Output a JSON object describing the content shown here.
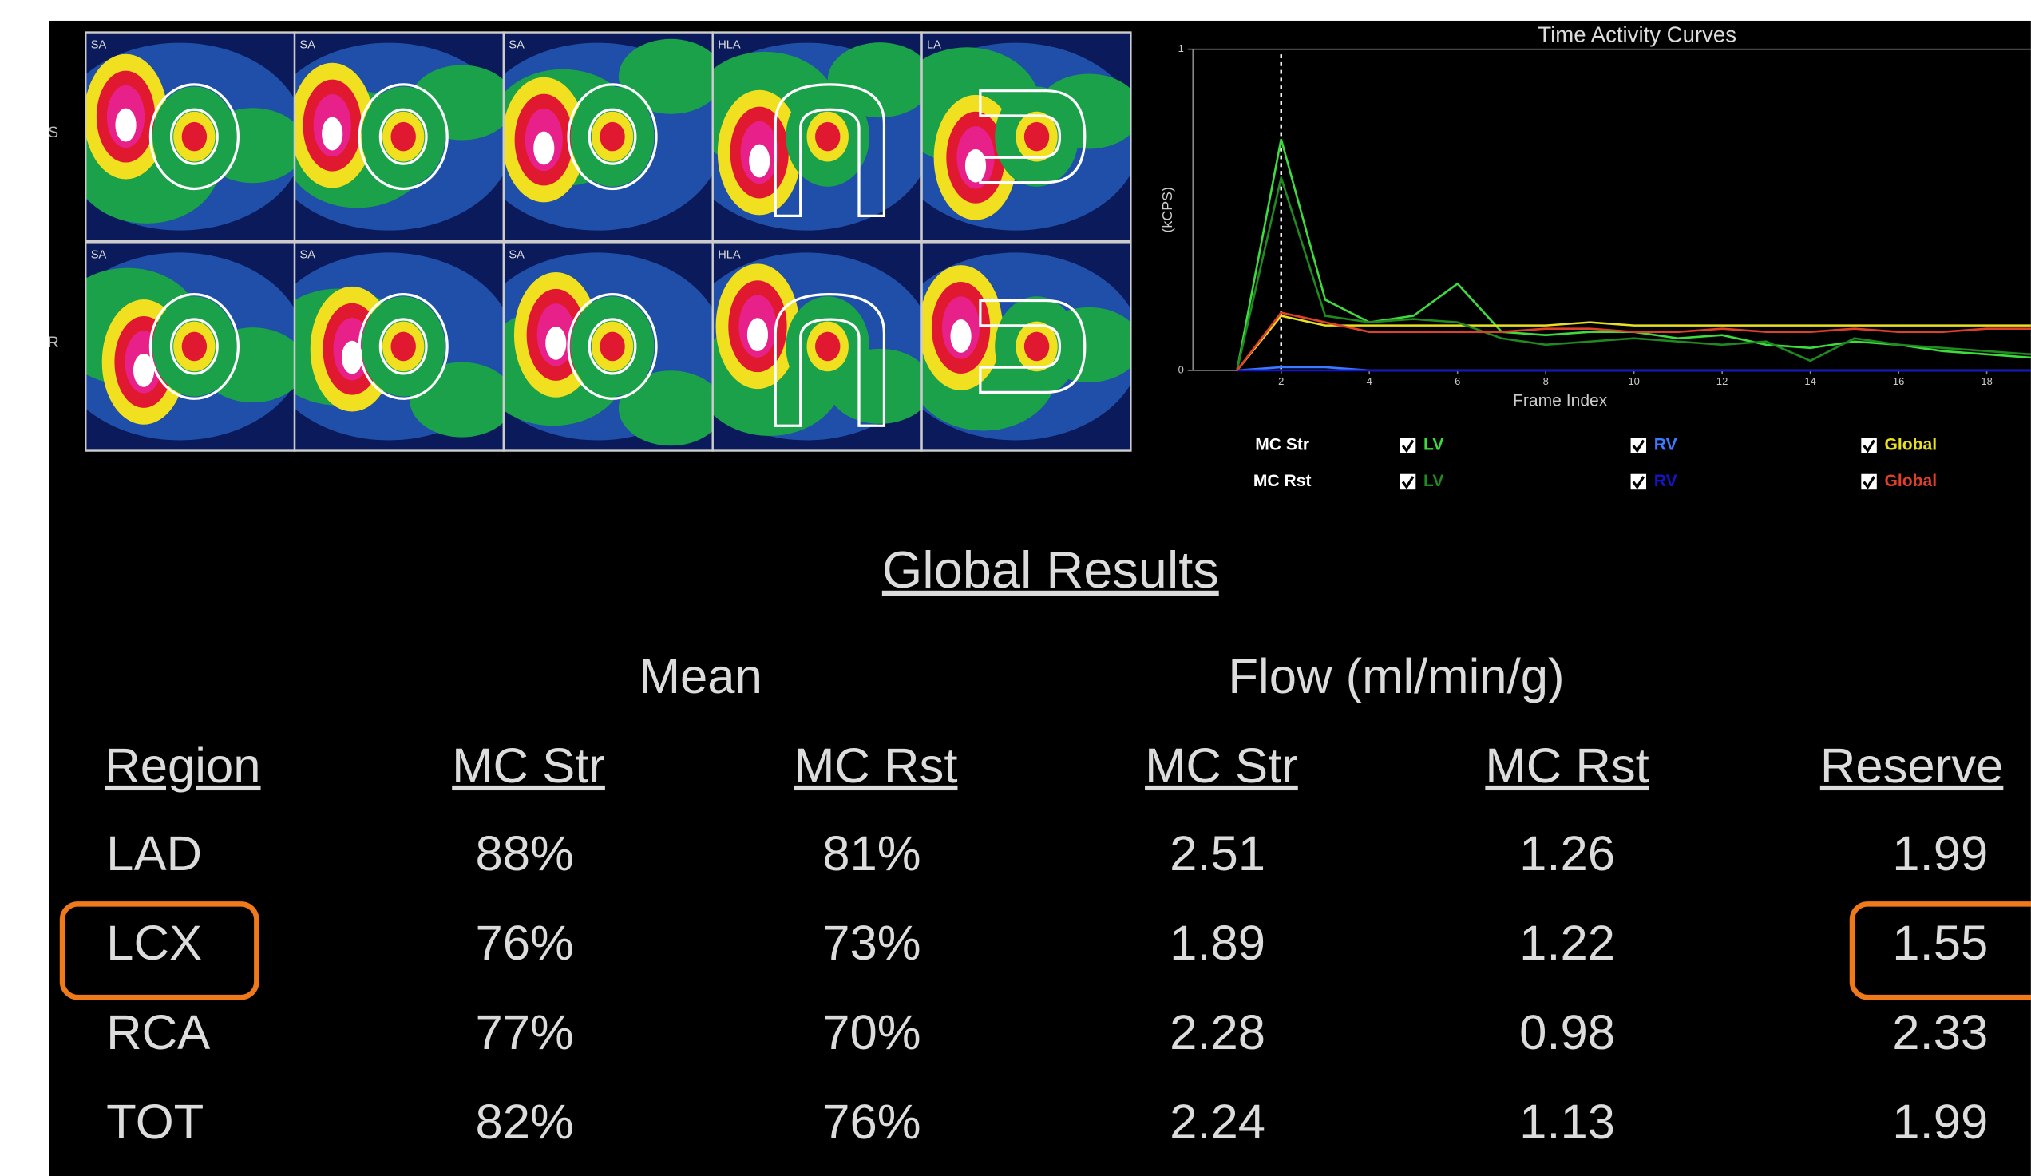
{
  "images": {
    "row_labels": [
      "S",
      "R"
    ],
    "panel_labels": [
      [
        "SA",
        "SA",
        "SA",
        "HLA",
        "LA"
      ],
      [
        "SA",
        "SA",
        "SA",
        "HLA"
      ]
    ]
  },
  "chart_data": {
    "type": "line",
    "title": "Time Activity Curves",
    "x_label": "Frame Index",
    "y_label": "(kCPS)",
    "x": [
      1,
      2,
      3,
      4,
      5,
      6,
      7,
      8,
      9,
      10,
      11,
      12,
      13,
      14,
      15,
      16,
      17,
      18,
      19
    ],
    "xlim": [
      0,
      19
    ],
    "ylim": [
      0,
      1
    ],
    "xticks": [
      2,
      4,
      6,
      8,
      10,
      12,
      14,
      16,
      18
    ],
    "yticks": [
      0,
      1
    ],
    "marker_x": 2,
    "legend_groups": [
      "MC Str",
      "MC Rst"
    ],
    "series": [
      {
        "group": 0,
        "name": "LV",
        "color": "#3ddc3d",
        "values": [
          0.0,
          0.72,
          0.22,
          0.15,
          0.17,
          0.27,
          0.12,
          0.11,
          0.12,
          0.12,
          0.1,
          0.11,
          0.08,
          0.07,
          0.09,
          0.08,
          0.06,
          0.05,
          0.04
        ]
      },
      {
        "group": 0,
        "name": "RV",
        "color": "#3a7bff",
        "values": [
          0.0,
          0.01,
          0.01,
          0.0,
          0.0,
          0.0,
          0.0,
          0.0,
          0.0,
          0.0,
          0.0,
          0.0,
          0.0,
          0.0,
          0.0,
          0.0,
          0.0,
          0.0,
          0.0
        ]
      },
      {
        "group": 0,
        "name": "Global",
        "color": "#e8e020",
        "values": [
          0.0,
          0.17,
          0.14,
          0.14,
          0.14,
          0.14,
          0.14,
          0.14,
          0.15,
          0.14,
          0.14,
          0.14,
          0.14,
          0.14,
          0.14,
          0.14,
          0.14,
          0.14,
          0.14
        ]
      },
      {
        "group": 1,
        "name": "LV",
        "color": "#1f8a1f",
        "values": [
          0.0,
          0.6,
          0.17,
          0.15,
          0.16,
          0.15,
          0.1,
          0.08,
          0.09,
          0.1,
          0.09,
          0.08,
          0.09,
          0.03,
          0.1,
          0.08,
          0.07,
          0.06,
          0.05
        ]
      },
      {
        "group": 1,
        "name": "RV",
        "color": "#1414c8",
        "values": [
          0.0,
          0.0,
          0.0,
          0.0,
          0.0,
          0.0,
          0.0,
          0.0,
          0.0,
          0.0,
          0.0,
          0.0,
          0.0,
          0.0,
          0.0,
          0.0,
          0.0,
          0.0,
          0.0
        ]
      },
      {
        "group": 1,
        "name": "Global",
        "color": "#e0402a",
        "values": [
          0.0,
          0.18,
          0.15,
          0.12,
          0.12,
          0.12,
          0.12,
          0.13,
          0.13,
          0.12,
          0.12,
          0.13,
          0.12,
          0.12,
          0.13,
          0.12,
          0.12,
          0.13,
          0.13
        ]
      }
    ]
  },
  "table": {
    "title": "Global Results",
    "group_headers": [
      "Mean",
      "Flow (ml/min/g)"
    ],
    "columns": [
      "Region",
      "MC Str",
      "MC Rst",
      "MC Str",
      "MC Rst",
      "Reserve"
    ],
    "rows": [
      [
        "LAD",
        "88%",
        "81%",
        "2.51",
        "1.26",
        "1.99"
      ],
      [
        "LCX",
        "76%",
        "73%",
        "1.89",
        "1.22",
        "1.55"
      ],
      [
        "RCA",
        "77%",
        "70%",
        "2.28",
        "0.98",
        "2.33"
      ],
      [
        "TOT",
        "82%",
        "76%",
        "2.24",
        "1.13",
        "1.99"
      ]
    ]
  }
}
